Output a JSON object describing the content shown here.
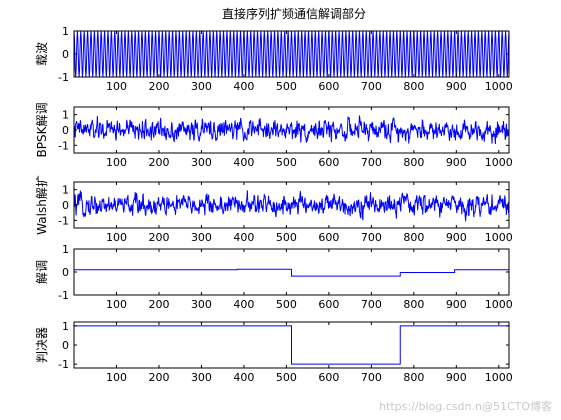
{
  "figure_title": "直接序列扩频通信解调部分",
  "watermark": "https://blog.csdn.n@51CTO博客",
  "colors": {
    "line": "#0000ff",
    "axis": "#000000",
    "background": "#ffffff"
  },
  "chart_data": [
    {
      "type": "line",
      "title": "直接序列扩频通信解调部分",
      "ylabel": "载波",
      "xlim": [
        0,
        1024
      ],
      "ylim": [
        -1,
        1
      ],
      "xticks": [
        100,
        200,
        300,
        400,
        500,
        600,
        700,
        800,
        900,
        1000
      ],
      "yticks": [
        -1,
        0,
        1
      ],
      "grid": false,
      "signal": {
        "kind": "carrier",
        "n": 1024,
        "amplitude": 1,
        "period_samples": 8
      }
    },
    {
      "type": "line",
      "ylabel": "BPSK解调",
      "xlim": [
        0,
        1024
      ],
      "ylim": [
        -1.5,
        1.5
      ],
      "xticks": [
        100,
        200,
        300,
        400,
        500,
        600,
        700,
        800,
        900,
        1000
      ],
      "yticks": [
        -1,
        0,
        1
      ],
      "grid": false,
      "signal": {
        "kind": "noise",
        "n": 1024,
        "amplitude_range": [
          -1.3,
          1.3
        ]
      }
    },
    {
      "type": "line",
      "ylabel": "Walsh解扩",
      "xlim": [
        0,
        1024
      ],
      "ylim": [
        -1.5,
        1.5
      ],
      "xticks": [
        100,
        200,
        300,
        400,
        500,
        600,
        700,
        800,
        900,
        1000
      ],
      "yticks": [
        -1,
        0,
        1
      ],
      "grid": false,
      "signal": {
        "kind": "noise",
        "n": 1024,
        "amplitude_range": [
          -1.3,
          1.3
        ]
      }
    },
    {
      "type": "line",
      "ylabel": "解调",
      "xlim": [
        0,
        1024
      ],
      "ylim": [
        -1,
        1
      ],
      "xticks": [
        100,
        200,
        300,
        400,
        500,
        600,
        700,
        800,
        900,
        1000
      ],
      "yticks": [
        -1,
        0,
        1
      ],
      "grid": false,
      "x": [
        0,
        384,
        384,
        512,
        512,
        768,
        768,
        896,
        896,
        1024
      ],
      "y": [
        0.1,
        0.1,
        0.12,
        0.12,
        -0.18,
        -0.18,
        -0.02,
        -0.02,
        0.1,
        0.1
      ]
    },
    {
      "type": "line",
      "ylabel": "判决器",
      "xlim": [
        0,
        1024
      ],
      "ylim": [
        -1.2,
        1.2
      ],
      "xticks": [
        100,
        200,
        300,
        400,
        500,
        600,
        700,
        800,
        900,
        1000
      ],
      "yticks": [
        -1,
        0,
        1
      ],
      "grid": false,
      "x": [
        0,
        512,
        512,
        768,
        768,
        1024
      ],
      "y": [
        1,
        1,
        -1,
        -1,
        1,
        1
      ]
    }
  ]
}
